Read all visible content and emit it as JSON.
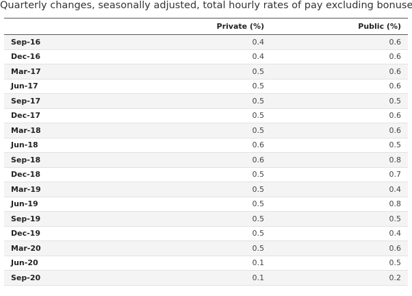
{
  "chart_data": {
    "type": "table",
    "title": "Quarterly changes, seasonally adjusted, total hourly rates of pay excluding bonuses",
    "columns": [
      "",
      "Private (%)",
      "Public (%)"
    ],
    "rows": [
      {
        "period": "Sep-16",
        "private": "0.4",
        "public": "0.6"
      },
      {
        "period": "Dec-16",
        "private": "0.4",
        "public": "0.6"
      },
      {
        "period": "Mar-17",
        "private": "0.5",
        "public": "0.6"
      },
      {
        "period": "Jun-17",
        "private": "0.5",
        "public": "0.6"
      },
      {
        "period": "Sep-17",
        "private": "0.5",
        "public": "0.5"
      },
      {
        "period": "Dec-17",
        "private": "0.5",
        "public": "0.6"
      },
      {
        "period": "Mar-18",
        "private": "0.5",
        "public": "0.6"
      },
      {
        "period": "Jun-18",
        "private": "0.6",
        "public": "0.5"
      },
      {
        "period": "Sep-18",
        "private": "0.6",
        "public": "0.8"
      },
      {
        "period": "Dec-18",
        "private": "0.5",
        "public": "0.7"
      },
      {
        "period": "Mar-19",
        "private": "0.5",
        "public": "0.4"
      },
      {
        "period": "Jun-19",
        "private": "0.5",
        "public": "0.8"
      },
      {
        "period": "Sep-19",
        "private": "0.5",
        "public": "0.5"
      },
      {
        "period": "Dec-19",
        "private": "0.5",
        "public": "0.4"
      },
      {
        "period": "Mar-20",
        "private": "0.5",
        "public": "0.6"
      },
      {
        "period": "Jun-20",
        "private": "0.1",
        "public": "0.5"
      },
      {
        "period": "Sep-20",
        "private": "0.1",
        "public": "0.2"
      }
    ]
  }
}
